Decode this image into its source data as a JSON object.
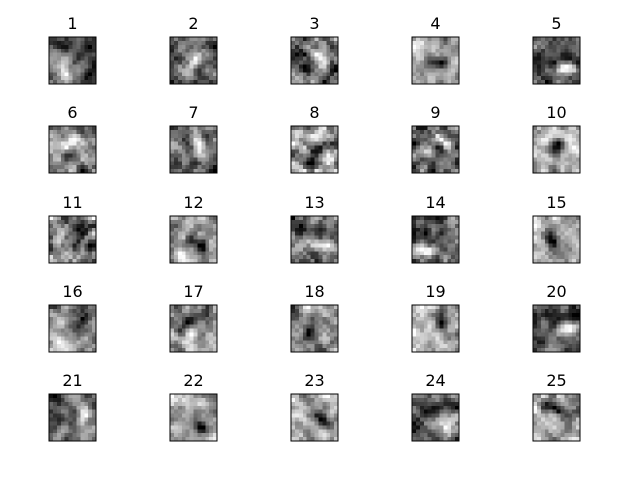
{
  "chart_data": {
    "type": "heatmap",
    "layout": {
      "rows": 5,
      "cols": 5
    },
    "colormap": "gray",
    "axes_visible": false,
    "grid": false,
    "panels": [
      {
        "title": "1"
      },
      {
        "title": "2"
      },
      {
        "title": "3"
      },
      {
        "title": "4"
      },
      {
        "title": "5"
      },
      {
        "title": "6"
      },
      {
        "title": "7"
      },
      {
        "title": "8"
      },
      {
        "title": "9"
      },
      {
        "title": "10"
      },
      {
        "title": "11"
      },
      {
        "title": "12"
      },
      {
        "title": "13"
      },
      {
        "title": "14"
      },
      {
        "title": "15"
      },
      {
        "title": "16"
      },
      {
        "title": "17"
      },
      {
        "title": "18"
      },
      {
        "title": "19"
      },
      {
        "title": "20"
      },
      {
        "title": "21"
      },
      {
        "title": "22"
      },
      {
        "title": "23"
      },
      {
        "title": "24"
      },
      {
        "title": "25"
      }
    ]
  }
}
